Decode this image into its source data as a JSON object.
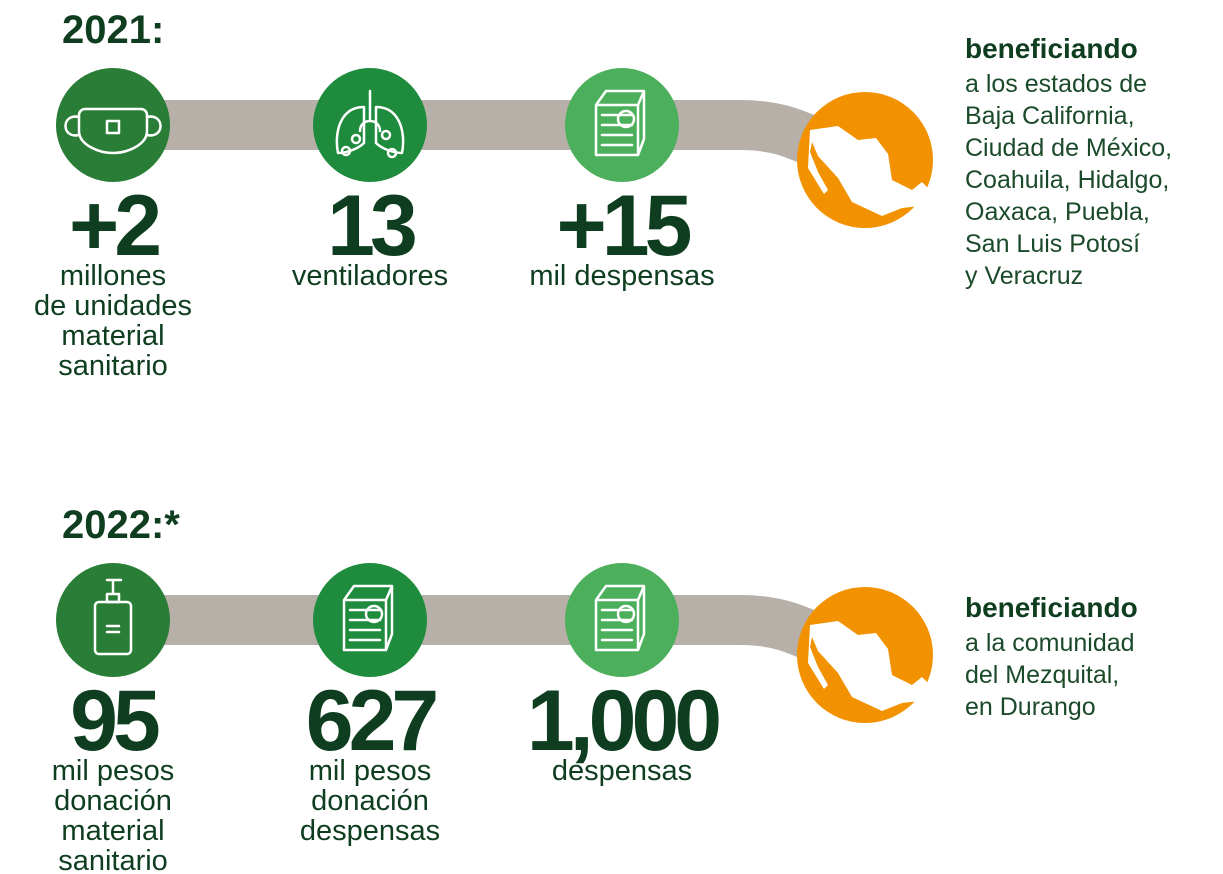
{
  "sections": [
    {
      "year": "2021:",
      "items": [
        {
          "number": "+2",
          "label": [
            "millones",
            "de unidades",
            "material",
            "sanitario"
          ]
        },
        {
          "number": "13",
          "label": [
            "ventiladores"
          ]
        },
        {
          "number": "+15",
          "label": [
            "mil despensas"
          ]
        }
      ],
      "beneficiary": {
        "heading": "beneficiando",
        "lines": [
          "a los estados de",
          "Baja California,",
          "Ciudad de México,",
          "Coahuila, Hidalgo,",
          "Oaxaca, Puebla,",
          "San Luis Potosí",
          "y Veracruz"
        ]
      }
    },
    {
      "year": "2022:*",
      "items": [
        {
          "number": "95",
          "label": [
            "mil pesos",
            "donación",
            "material",
            "sanitario"
          ]
        },
        {
          "number": "627",
          "label": [
            "mil pesos",
            "donación",
            "despensas"
          ]
        },
        {
          "number": "1,000",
          "label": [
            "despensas"
          ]
        }
      ],
      "beneficiary": {
        "heading": "beneficiando",
        "lines": [
          "a la comunidad",
          "del Mezquital,",
          "en Durango"
        ]
      }
    }
  ]
}
